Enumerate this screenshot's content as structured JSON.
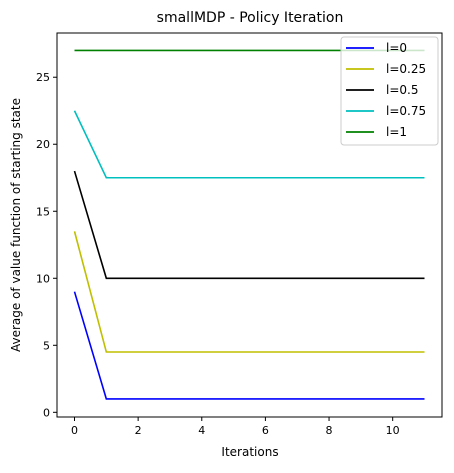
{
  "chart_data": {
    "type": "line",
    "title": "smallMDP - Policy Iteration",
    "xlabel": "Iterations",
    "ylabel": "Average of value function of starting state",
    "xlim": [
      -0.55,
      11.55
    ],
    "ylim": [
      -0.35,
      28.3
    ],
    "xticks": [
      0,
      2,
      4,
      6,
      8,
      10
    ],
    "yticks": [
      0,
      5,
      10,
      15,
      20,
      25
    ],
    "x": [
      0,
      1,
      2,
      3,
      4,
      5,
      6,
      7,
      8,
      9,
      10,
      11
    ],
    "series": [
      {
        "name": "l=0",
        "color": "#0000ff",
        "values": [
          9,
          1,
          1,
          1,
          1,
          1,
          1,
          1,
          1,
          1,
          1,
          1
        ]
      },
      {
        "name": "l=0.25",
        "color": "#bfbf00",
        "values": [
          13.5,
          4.5,
          4.5,
          4.5,
          4.5,
          4.5,
          4.5,
          4.5,
          4.5,
          4.5,
          4.5,
          4.5
        ]
      },
      {
        "name": "l=0.5",
        "color": "#000000",
        "values": [
          18,
          10,
          10,
          10,
          10,
          10,
          10,
          10,
          10,
          10,
          10,
          10
        ]
      },
      {
        "name": "l=0.75",
        "color": "#00bfbf",
        "values": [
          22.5,
          17.5,
          17.5,
          17.5,
          17.5,
          17.5,
          17.5,
          17.5,
          17.5,
          17.5,
          17.5,
          17.5
        ]
      },
      {
        "name": "l=1",
        "color": "#008000",
        "values": [
          27,
          27,
          27,
          27,
          27,
          27,
          27,
          27,
          27,
          27,
          27,
          27
        ]
      }
    ],
    "grid": false,
    "legend_position": "top-right"
  }
}
